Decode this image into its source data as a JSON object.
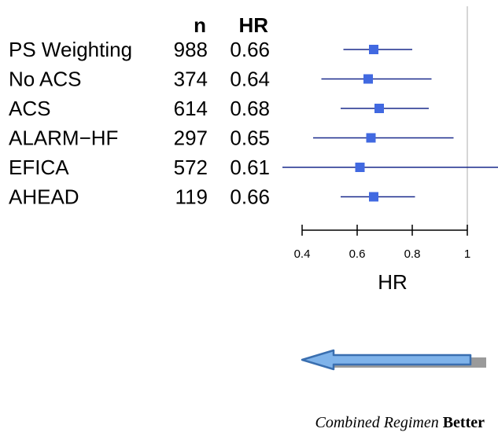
{
  "table": {
    "header_n": "n",
    "header_hr": "HR"
  },
  "chart_data": {
    "type": "forest",
    "columns": [
      "n",
      "HR"
    ],
    "rows": [
      {
        "label": "PS Weighting",
        "n": "988",
        "hr_text": "0.66",
        "hr": 0.66,
        "ci": [
          0.55,
          0.8
        ]
      },
      {
        "label": "No ACS",
        "n": "374",
        "hr_text": "0.64",
        "hr": 0.64,
        "ci": [
          0.47,
          0.87
        ]
      },
      {
        "label": "ACS",
        "n": "614",
        "hr_text": "0.68",
        "hr": 0.68,
        "ci": [
          0.54,
          0.86
        ]
      },
      {
        "label": "ALARM−HF",
        "n": "297",
        "hr_text": "0.65",
        "hr": 0.65,
        "ci": [
          0.44,
          0.95
        ]
      },
      {
        "label": "EFICA",
        "n": "572",
        "hr_text": "0.61",
        "hr": 0.61,
        "ci": [
          0.32,
          1.12
        ]
      },
      {
        "label": "AHEAD",
        "n": "119",
        "hr_text": "0.66",
        "hr": 0.66,
        "ci": [
          0.54,
          0.81
        ]
      }
    ],
    "xlabel": "HR",
    "xticks": [
      0.4,
      0.6,
      0.8,
      1
    ],
    "tick_labels": [
      "0.4",
      "0.6",
      "0.8",
      "1"
    ],
    "reference_line": 1,
    "colors": {
      "marker": "#4169e1",
      "ci_line": "#1a2a8c",
      "reference": "#c8c8c8"
    }
  },
  "footer": {
    "italic": "Combined Regimen",
    "bold": "Better"
  },
  "arrow": {
    "direction": "left",
    "fill": "#7fb3ea",
    "outline": "#3a6fb0",
    "shadow": "#9a9a9a"
  }
}
